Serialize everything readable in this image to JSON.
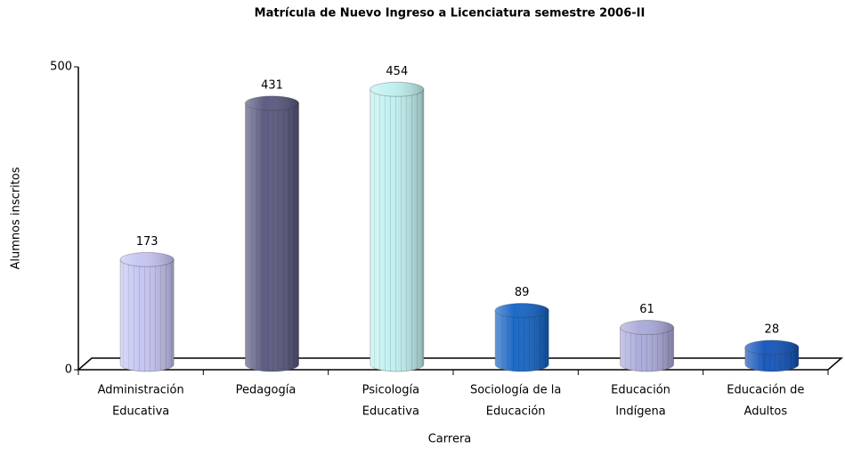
{
  "chart_data": {
    "type": "bar3d",
    "title": "Matrícula de Nuevo Ingreso a Licenciatura semestre 2006-II",
    "x_label": "Carrera",
    "y_label": "Alumnos inscritos",
    "categories": [
      [
        "Administración",
        "Educativa"
      ],
      [
        "Pedagogía"
      ],
      [
        "Psicología",
        "Educativa"
      ],
      [
        "Sociología de la",
        "Educación"
      ],
      [
        "Educación",
        "Indígena"
      ],
      [
        "Educación de",
        "Adultos"
      ]
    ],
    "values": [
      173,
      431,
      454,
      89,
      61,
      28
    ],
    "colors": [
      "#c4c4f2",
      "#56567e",
      "#bff0f0",
      "#1262c4",
      "#a9a9da",
      "#1052ba"
    ],
    "ylim": [
      0,
      500
    ],
    "yticks": [
      0,
      500
    ]
  }
}
